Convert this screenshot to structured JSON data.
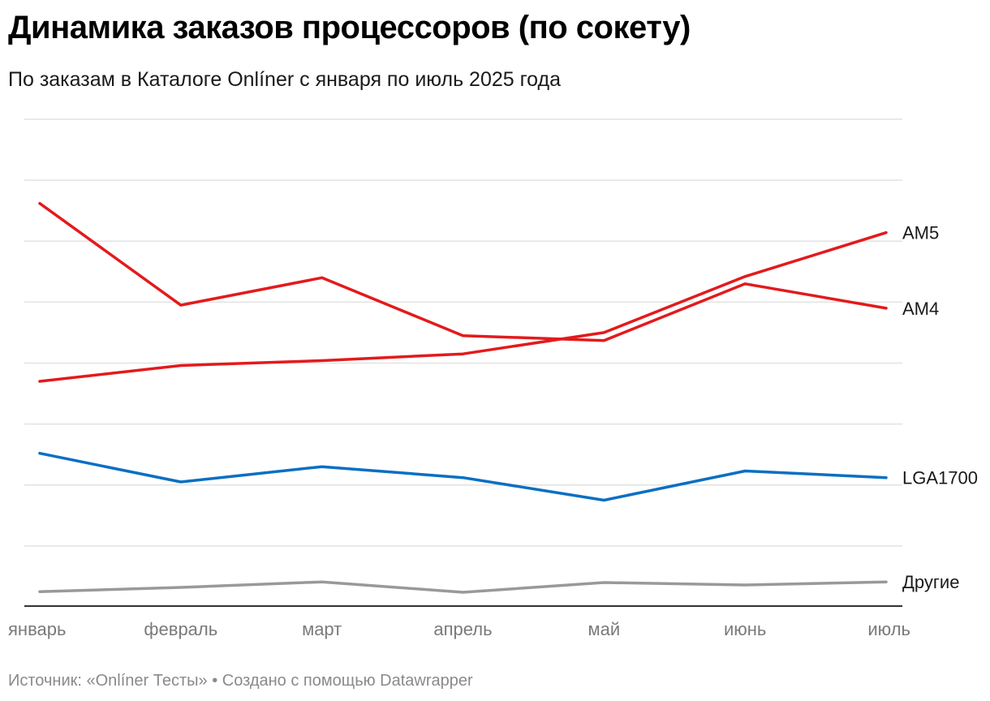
{
  "title": "Динамика заказов процессоров (по сокету)",
  "subtitle": "По заказам в Каталоге Onlíner с января по июль 2025 года",
  "footer": {
    "source_label": "Источник: «Onlíner Тесты»",
    "separator": " • ",
    "made_with": "Создано с помощью Datawrapper"
  },
  "chart_data": {
    "type": "line",
    "x": [
      "январь",
      "февраль",
      "март",
      "апрель",
      "май",
      "июнь",
      "июль"
    ],
    "ylim": [
      0,
      8
    ],
    "grid": true,
    "y_ticks_shown": false,
    "series": [
      {
        "name": "AM5",
        "color": "#e31a1c",
        "values": [
          3.7,
          3.96,
          4.04,
          4.15,
          4.5,
          5.42,
          6.14
        ]
      },
      {
        "name": "AM4",
        "color": "#e31a1c",
        "values": [
          6.62,
          4.95,
          5.4,
          4.45,
          4.37,
          5.3,
          4.9
        ]
      },
      {
        "name": "LGA1700",
        "color": "#0a6fc2",
        "values": [
          2.52,
          2.05,
          2.3,
          2.12,
          1.75,
          2.23,
          2.12
        ]
      },
      {
        "name": "Другие",
        "color": "#999999",
        "values": [
          0.25,
          0.32,
          0.41,
          0.24,
          0.4,
          0.36,
          0.41
        ]
      }
    ]
  }
}
